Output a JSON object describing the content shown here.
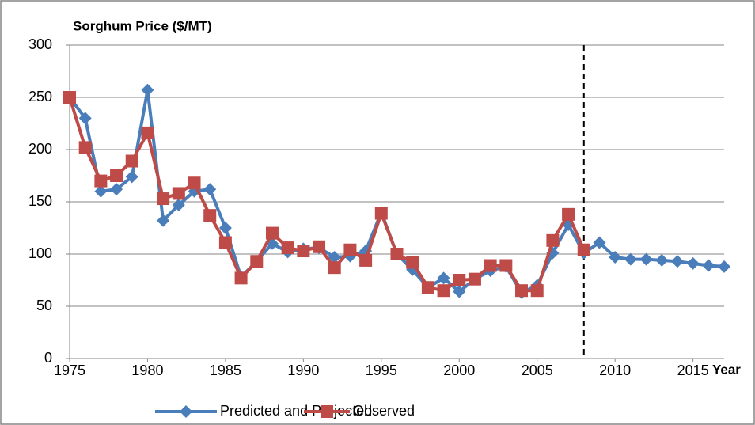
{
  "chart_data": {
    "type": "line",
    "title": "Sorghum Price ($/MT)",
    "x_label": "Year",
    "x": [
      1975,
      1976,
      1977,
      1978,
      1979,
      1980,
      1981,
      1982,
      1983,
      1984,
      1985,
      1986,
      1987,
      1988,
      1989,
      1990,
      1991,
      1992,
      1993,
      1994,
      1995,
      1996,
      1997,
      1998,
      1999,
      2000,
      2001,
      2002,
      2003,
      2004,
      2005,
      2006,
      2007,
      2008,
      2009,
      2010,
      2011,
      2012,
      2013,
      2014,
      2015,
      2016,
      2017
    ],
    "series": [
      {
        "name": "Predicted and Projected",
        "color": "#4a7ebb",
        "marker": "diamond",
        "values": [
          250,
          230,
          160,
          162,
          174,
          257,
          132,
          147,
          160,
          162,
          125,
          78,
          93,
          110,
          102,
          105,
          106,
          97,
          98,
          103,
          140,
          100,
          85,
          68,
          77,
          64,
          76,
          84,
          88,
          63,
          70,
          101,
          128,
          101,
          111,
          97,
          95,
          95,
          94,
          93,
          91,
          89,
          88
        ]
      },
      {
        "name": "Observed",
        "color": "#be4b48",
        "marker": "square",
        "values": [
          250,
          202,
          170,
          175,
          189,
          216,
          153,
          158,
          168,
          137,
          111,
          77,
          93,
          120,
          106,
          103,
          107,
          87,
          104,
          94,
          139,
          100,
          92,
          68,
          65,
          75,
          76,
          89,
          89,
          65,
          65,
          113,
          138,
          104,
          null,
          null,
          null,
          null,
          null,
          null,
          null,
          null,
          null
        ]
      }
    ],
    "xlim": [
      1975,
      2017
    ],
    "xticks": [
      1975,
      1980,
      1985,
      1990,
      1995,
      2000,
      2005,
      2010,
      2015
    ],
    "ylim": [
      0,
      300
    ],
    "yticks": [
      0,
      50,
      100,
      150,
      200,
      250,
      300
    ],
    "grid": true,
    "divider_x": 2008,
    "legend": "bottom"
  }
}
